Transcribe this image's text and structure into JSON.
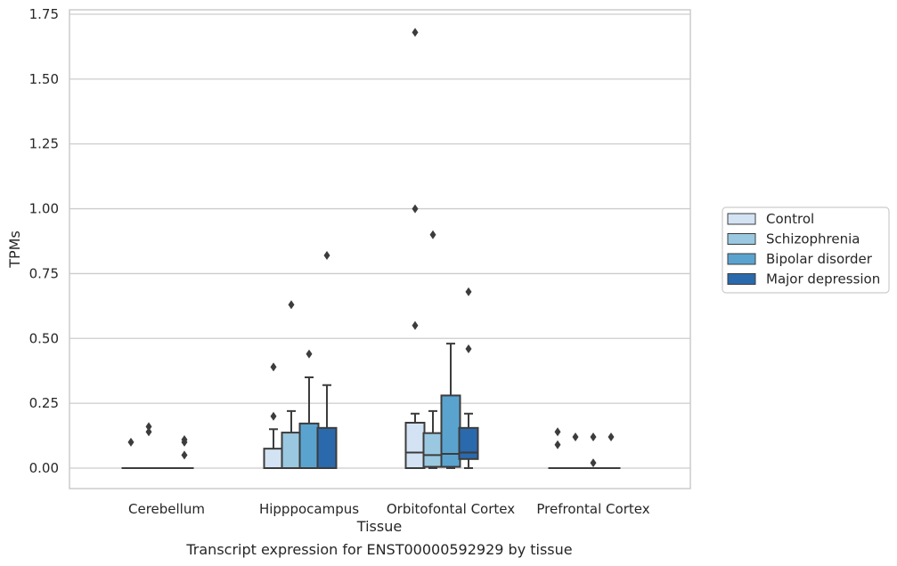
{
  "chart_data": {
    "type": "box",
    "title": "",
    "caption": "Transcript expression for ENST00000592929 by tissue",
    "xlabel": "Tissue",
    "ylabel": "TPMs",
    "ylim": [
      -0.08,
      1.76
    ],
    "yticks": [
      "0.00",
      "0.25",
      "0.50",
      "0.75",
      "1.00",
      "1.25",
      "1.50",
      "1.75"
    ],
    "ytick_values": [
      0,
      0.25,
      0.5,
      0.75,
      1.0,
      1.25,
      1.5,
      1.75
    ],
    "grid": "horizontal",
    "legend_position": "right",
    "categories": [
      "Cerebellum",
      "Hipppocampus",
      "Orbitofontal Cortex",
      "Prefrontal Cortex"
    ],
    "series": [
      {
        "name": "Control",
        "color": "#d3e3f3",
        "boxes": [
          {
            "q1": 0,
            "median": 0,
            "q3": 0,
            "whislo": 0,
            "whishi": 0,
            "fliers": [
              0.1
            ]
          },
          {
            "q1": 0,
            "median": 0,
            "q3": 0.075,
            "whislo": 0,
            "whishi": 0.15,
            "fliers": [
              0.2,
              0.39
            ]
          },
          {
            "q1": 0,
            "median": 0.06,
            "q3": 0.175,
            "whislo": 0,
            "whishi": 0.21,
            "fliers": [
              0.55,
              1.0,
              1.68
            ]
          },
          {
            "q1": 0,
            "median": 0,
            "q3": 0,
            "whislo": 0,
            "whishi": 0,
            "fliers": [
              0.09,
              0.14
            ]
          }
        ]
      },
      {
        "name": "Schizophrenia",
        "color": "#9ac8e0",
        "boxes": [
          {
            "q1": 0,
            "median": 0,
            "q3": 0,
            "whislo": 0,
            "whishi": 0,
            "fliers": [
              0.14,
              0.16
            ]
          },
          {
            "q1": 0,
            "median": 0,
            "q3": 0.137,
            "whislo": 0,
            "whishi": 0.22,
            "fliers": [
              0.63
            ]
          },
          {
            "q1": 0.005,
            "median": 0.05,
            "q3": 0.135,
            "whislo": 0,
            "whishi": 0.22,
            "fliers": [
              0.9
            ]
          },
          {
            "q1": 0,
            "median": 0,
            "q3": 0,
            "whislo": 0,
            "whishi": 0,
            "fliers": [
              0.12
            ]
          }
        ]
      },
      {
        "name": "Bipolar disorder",
        "color": "#5ba3cf",
        "boxes": [
          {
            "q1": 0,
            "median": 0,
            "q3": 0,
            "whislo": 0,
            "whishi": 0,
            "fliers": []
          },
          {
            "q1": 0,
            "median": 0,
            "q3": 0.172,
            "whislo": 0,
            "whishi": 0.35,
            "fliers": [
              0.44
            ]
          },
          {
            "q1": 0.005,
            "median": 0.055,
            "q3": 0.28,
            "whislo": 0,
            "whishi": 0.48,
            "fliers": []
          },
          {
            "q1": 0,
            "median": 0,
            "q3": 0,
            "whislo": 0,
            "whishi": 0,
            "fliers": [
              0.02,
              0.12
            ]
          }
        ]
      },
      {
        "name": "Major depression",
        "color": "#2a69ac",
        "boxes": [
          {
            "q1": 0,
            "median": 0,
            "q3": 0,
            "whislo": 0,
            "whishi": 0,
            "fliers": [
              0.05,
              0.1,
              0.11
            ]
          },
          {
            "q1": 0,
            "median": 0,
            "q3": 0.155,
            "whislo": 0,
            "whishi": 0.32,
            "fliers": [
              0.82
            ]
          },
          {
            "q1": 0.035,
            "median": 0.06,
            "q3": 0.155,
            "whislo": 0,
            "whishi": 0.21,
            "fliers": [
              0.46,
              0.68
            ]
          },
          {
            "q1": 0,
            "median": 0,
            "q3": 0,
            "whislo": 0,
            "whishi": 0,
            "fliers": [
              0.12
            ]
          }
        ]
      }
    ]
  }
}
